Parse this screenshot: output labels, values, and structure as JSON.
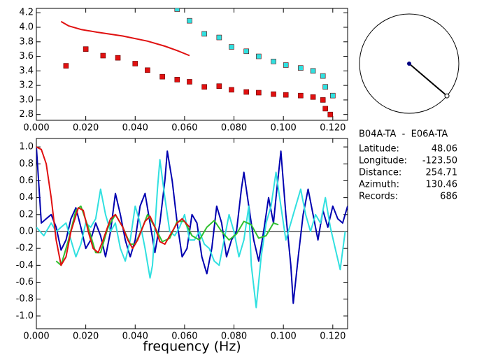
{
  "chart_data": [
    {
      "type": "scatter",
      "xlim": [
        0,
        0.126
      ],
      "ylim": [
        2.72,
        4.26
      ],
      "xticks": [
        {
          "value": 0,
          "label": "0.000"
        },
        {
          "value": 0.02,
          "label": "0.020"
        },
        {
          "value": 0.04,
          "label": "0.040"
        },
        {
          "value": 0.06,
          "label": "0.060"
        },
        {
          "value": 0.08,
          "label": "0.080"
        },
        {
          "value": 0.1,
          "label": "0.100"
        },
        {
          "value": 0.12,
          "label": "0.120"
        }
      ],
      "yticks": [
        {
          "value": 2.8,
          "label": "2.8"
        },
        {
          "value": 3.0,
          "label": "3.0"
        },
        {
          "value": 3.2,
          "label": "3.2"
        },
        {
          "value": 3.4,
          "label": "3.4"
        },
        {
          "value": 3.6,
          "label": "3.6"
        },
        {
          "value": 3.8,
          "label": "3.8"
        },
        {
          "value": 4.0,
          "label": "4.0"
        },
        {
          "value": 4.2,
          "label": "4.2"
        }
      ],
      "series": [
        {
          "style": "markers",
          "color": "#e01010",
          "x": [
            0.012,
            0.02,
            0.027,
            0.033,
            0.04,
            0.045,
            0.051,
            0.057,
            0.062,
            0.068,
            0.074,
            0.079,
            0.085,
            0.09,
            0.096,
            0.101,
            0.107,
            0.112,
            0.116,
            0.117,
            0.119
          ],
          "values": [
            3.47,
            3.7,
            3.61,
            3.58,
            3.5,
            3.41,
            3.32,
            3.28,
            3.25,
            3.18,
            3.19,
            3.14,
            3.11,
            3.1,
            3.08,
            3.07,
            3.06,
            3.04,
            3.0,
            2.88,
            2.8
          ]
        },
        {
          "style": "markers",
          "color": "#30e0e0",
          "x": [
            0.057,
            0.062,
            0.068,
            0.074,
            0.079,
            0.085,
            0.09,
            0.096,
            0.101,
            0.107,
            0.112,
            0.116,
            0.117,
            0.12
          ],
          "values": [
            4.25,
            4.09,
            3.91,
            3.86,
            3.73,
            3.67,
            3.6,
            3.53,
            3.48,
            3.44,
            3.4,
            3.33,
            3.18,
            3.06
          ]
        },
        {
          "style": "line",
          "color": "#e01010",
          "x": [
            0.01,
            0.013,
            0.018,
            0.025,
            0.035,
            0.045,
            0.052,
            0.057,
            0.062
          ],
          "values": [
            4.08,
            4.02,
            3.97,
            3.93,
            3.88,
            3.81,
            3.74,
            3.68,
            3.61
          ]
        }
      ]
    },
    {
      "type": "line",
      "xlabel": "frequency (Hz)",
      "xlim": [
        0,
        0.126
      ],
      "ylim": [
        -1.15,
        1.1
      ],
      "zero_line": true,
      "xticks": [
        {
          "value": 0,
          "label": "0.000"
        },
        {
          "value": 0.02,
          "label": "0.020"
        },
        {
          "value": 0.04,
          "label": "0.040"
        },
        {
          "value": 0.06,
          "label": "0.060"
        },
        {
          "value": 0.08,
          "label": "0.080"
        },
        {
          "value": 0.1,
          "label": "0.100"
        },
        {
          "value": 0.12,
          "label": "0.120"
        }
      ],
      "yticks": [
        {
          "value": -1.0,
          "label": "-1.0"
        },
        {
          "value": -0.8,
          "label": "-0.8"
        },
        {
          "value": -0.6,
          "label": "-0.6"
        },
        {
          "value": -0.4,
          "label": "-0.4"
        },
        {
          "value": -0.2,
          "label": "-0.2"
        },
        {
          "value": 0,
          "label": "0.0"
        },
        {
          "value": 0.2,
          "label": "0.2"
        },
        {
          "value": 0.4,
          "label": "0.4"
        },
        {
          "value": 0.6,
          "label": "0.6"
        },
        {
          "value": 0.8,
          "label": "0.8"
        },
        {
          "value": 1.0,
          "label": "1.0"
        }
      ],
      "series": [
        {
          "style": "line",
          "color": "#0000b0",
          "x": [
            0,
            0.002,
            0.004,
            0.006,
            0.008,
            0.01,
            0.012,
            0.014,
            0.016,
            0.018,
            0.02,
            0.022,
            0.024,
            0.026,
            0.028,
            0.03,
            0.032,
            0.034,
            0.036,
            0.038,
            0.04,
            0.042,
            0.044,
            0.046,
            0.048,
            0.05,
            0.052,
            0.053,
            0.055,
            0.057,
            0.059,
            0.061,
            0.063,
            0.065,
            0.067,
            0.069,
            0.071,
            0.073,
            0.075,
            0.077,
            0.079,
            0.081,
            0.083,
            0.084,
            0.086,
            0.088,
            0.09,
            0.092,
            0.094,
            0.096,
            0.097,
            0.099,
            0.101,
            0.103,
            0.104,
            0.106,
            0.108,
            0.11,
            0.112,
            0.114,
            0.116,
            0.118,
            0.12,
            0.122,
            0.124,
            0.126
          ],
          "values": [
            1.0,
            0.1,
            0.15,
            0.2,
            0.05,
            -0.22,
            -0.1,
            0.15,
            0.28,
            0.05,
            -0.2,
            -0.1,
            0.1,
            -0.05,
            -0.3,
            0.0,
            0.45,
            0.2,
            -0.1,
            -0.3,
            -0.1,
            0.3,
            0.45,
            0.1,
            -0.25,
            0.1,
            0.6,
            0.95,
            0.6,
            0.1,
            -0.3,
            -0.2,
            0.2,
            0.1,
            -0.3,
            -0.5,
            -0.2,
            0.3,
            0.1,
            -0.3,
            -0.1,
            0.0,
            0.5,
            0.7,
            0.3,
            -0.1,
            -0.35,
            0.0,
            0.4,
            0.1,
            0.4,
            0.95,
            0.2,
            -0.4,
            -0.85,
            -0.3,
            0.2,
            0.5,
            0.2,
            -0.1,
            0.25,
            0.05,
            0.3,
            0.15,
            0.1,
            0.3
          ]
        },
        {
          "style": "line",
          "color": "#30e0e0",
          "x": [
            0,
            0.003,
            0.006,
            0.008,
            0.01,
            0.012,
            0.014,
            0.016,
            0.018,
            0.02,
            0.022,
            0.024,
            0.026,
            0.028,
            0.03,
            0.032,
            0.034,
            0.036,
            0.038,
            0.04,
            0.042,
            0.044,
            0.046,
            0.047,
            0.049,
            0.05,
            0.052,
            0.054,
            0.056,
            0.058,
            0.06,
            0.062,
            0.064,
            0.066,
            0.068,
            0.07,
            0.072,
            0.074,
            0.076,
            0.078,
            0.08,
            0.082,
            0.084,
            0.086,
            0.087,
            0.089,
            0.091,
            0.093,
            0.095,
            0.097,
            0.099,
            0.101,
            0.103,
            0.105,
            0.107,
            0.109,
            0.111,
            0.113,
            0.115,
            0.117,
            0.119,
            0.121,
            0.123,
            0.125
          ],
          "values": [
            0.05,
            -0.05,
            0.1,
            0.0,
            0.05,
            0.1,
            -0.1,
            -0.3,
            -0.15,
            0.1,
            0.05,
            0.15,
            0.5,
            0.2,
            0.0,
            0.1,
            -0.2,
            -0.35,
            -0.1,
            0.3,
            0.1,
            -0.2,
            -0.55,
            -0.4,
            0.5,
            0.85,
            0.4,
            0.0,
            -0.05,
            0.05,
            0.2,
            -0.1,
            -0.1,
            0.0,
            -0.15,
            -0.2,
            -0.35,
            -0.4,
            -0.1,
            0.2,
            0.0,
            -0.3,
            -0.1,
            0.3,
            -0.4,
            -0.9,
            -0.3,
            0.1,
            0.3,
            0.7,
            0.3,
            -0.1,
            0.1,
            0.3,
            0.5,
            0.2,
            0.0,
            0.2,
            0.1,
            0.4,
            0.05,
            -0.2,
            -0.45,
            0.0
          ]
        },
        {
          "style": "line",
          "color": "#30c030",
          "x": [
            0.008,
            0.01,
            0.013,
            0.016,
            0.018,
            0.021,
            0.024,
            0.026,
            0.029,
            0.032,
            0.035,
            0.038,
            0.04,
            0.043,
            0.045,
            0.048,
            0.051,
            0.054,
            0.057,
            0.06,
            0.063,
            0.066,
            0.069,
            0.072,
            0.075,
            0.078,
            0.081,
            0.084,
            0.087,
            0.09,
            0.093,
            0.096,
            0.098
          ],
          "values": [
            -0.35,
            -0.4,
            -0.1,
            0.25,
            0.3,
            0.05,
            -0.25,
            -0.25,
            0.05,
            0.2,
            0.05,
            -0.15,
            -0.15,
            0.05,
            0.2,
            0.05,
            -0.12,
            -0.08,
            0.12,
            0.12,
            -0.05,
            -0.1,
            0.05,
            0.13,
            0.0,
            -0.1,
            -0.03,
            0.12,
            0.08,
            -0.08,
            -0.05,
            0.1,
            0.08
          ]
        },
        {
          "style": "line",
          "color": "#e01010",
          "x": [
            0,
            0.002,
            0.004,
            0.006,
            0.008,
            0.01,
            0.012,
            0.014,
            0.017,
            0.019,
            0.021,
            0.023,
            0.025,
            0.027,
            0.03,
            0.032,
            0.035,
            0.037,
            0.039,
            0.041,
            0.044,
            0.046,
            0.048,
            0.05,
            0.052,
            0.054,
            0.057,
            0.059,
            0.062
          ],
          "values": [
            1.0,
            0.97,
            0.8,
            0.4,
            -0.1,
            -0.4,
            -0.3,
            0.0,
            0.28,
            0.25,
            0.0,
            -0.2,
            -0.25,
            -0.1,
            0.15,
            0.2,
            0.05,
            -0.1,
            -0.2,
            -0.1,
            0.12,
            0.18,
            0.05,
            -0.12,
            -0.15,
            -0.05,
            0.1,
            0.15,
            0.05
          ]
        }
      ]
    }
  ],
  "station_info": {
    "title": "B04A-TA  -  E06A-TA",
    "rows": [
      {
        "label": "Latitude:",
        "value": 48.06
      },
      {
        "label": "Longitude:",
        "value": "-123.50"
      },
      {
        "label": "Distance:",
        "value": 254.71
      },
      {
        "label": "Azimuth:",
        "value": 130.46
      },
      {
        "label": "Records:",
        "value": 686
      }
    ]
  }
}
